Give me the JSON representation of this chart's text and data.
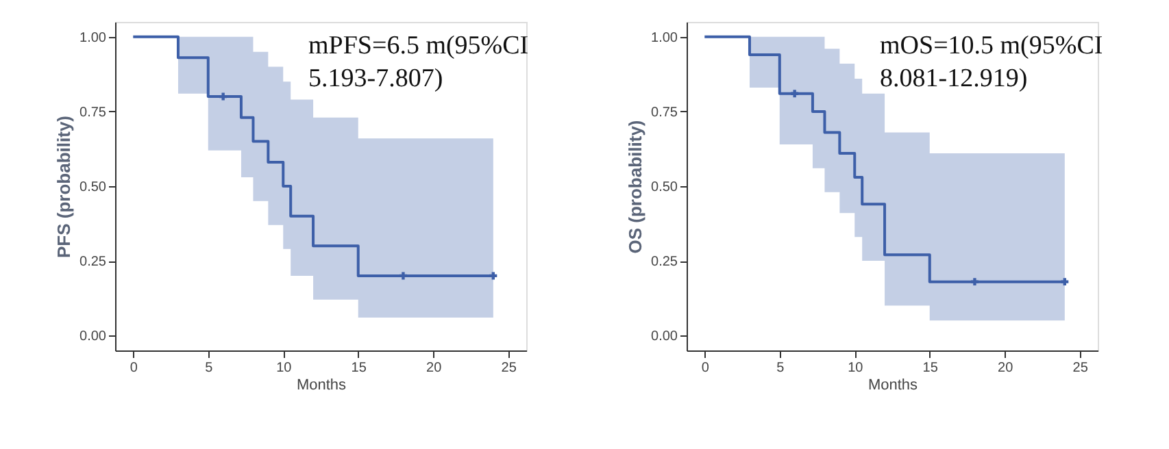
{
  "chart_data": [
    {
      "type": "step",
      "xlabel": "Months",
      "ylabel": "PFS (probability)",
      "annotations": [
        "mPFS=6.5 m(95%CI\n5.193-7.807)"
      ],
      "xlim": [
        -1.2,
        26.2
      ],
      "ylim": [
        -0.05,
        1.05
      ],
      "xticks": [
        0,
        5,
        10,
        15,
        20,
        25
      ],
      "yticks": [
        {
          "value": 0,
          "label": "0.00"
        },
        {
          "value": 0.25,
          "label": "0.25"
        },
        {
          "value": 0.5,
          "label": "0.50"
        },
        {
          "value": 0.75,
          "label": "0.75"
        },
        {
          "value": 1,
          "label": "1.00"
        }
      ],
      "grid": false,
      "line_style": "solid",
      "series": [
        {
          "color": "#3d5fa8",
          "x": [
            0,
            3,
            5,
            7.2,
            8,
            9,
            10,
            10.5,
            12,
            15,
            24
          ],
          "values": [
            1,
            0.93,
            0.8,
            0.73,
            0.65,
            0.58,
            0.5,
            0.4,
            0.3,
            0.2,
            0.2
          ],
          "lower": [
            1,
            0.81,
            0.62,
            0.53,
            0.45,
            0.37,
            0.29,
            0.2,
            0.12,
            0.06,
            0.06
          ],
          "upper": [
            1,
            1,
            1,
            1,
            0.95,
            0.9,
            0.85,
            0.79,
            0.73,
            0.66,
            0.66
          ]
        },
        {
          "type": "scatter",
          "marker": "cross",
          "color": "#3d5fa8",
          "x": [
            6,
            18,
            24
          ],
          "values": [
            0.8,
            0.2,
            0.2
          ]
        }
      ]
    },
    {
      "type": "step",
      "xlabel": "Months",
      "ylabel": "OS (probability)",
      "annotations": [
        "mOS=10.5 m(95%CI\n8.081-12.919)"
      ],
      "xlim": [
        -1.2,
        26.2
      ],
      "ylim": [
        -0.05,
        1.05
      ],
      "xticks": [
        0,
        5,
        10,
        15,
        20,
        25
      ],
      "yticks": [
        {
          "value": 0,
          "label": "0.00"
        },
        {
          "value": 0.25,
          "label": "0.25"
        },
        {
          "value": 0.5,
          "label": "0.50"
        },
        {
          "value": 0.75,
          "label": "0.75"
        },
        {
          "value": 1,
          "label": "1.00"
        }
      ],
      "grid": false,
      "line_style": "solid",
      "series": [
        {
          "color": "#3d5fa8",
          "x": [
            0,
            3,
            5,
            7.2,
            8,
            9,
            10,
            10.5,
            12,
            15,
            24
          ],
          "values": [
            1,
            0.94,
            0.81,
            0.75,
            0.68,
            0.61,
            0.53,
            0.44,
            0.27,
            0.18,
            0.18
          ],
          "lower": [
            1,
            0.83,
            0.64,
            0.56,
            0.48,
            0.41,
            0.33,
            0.25,
            0.1,
            0.05,
            0.05
          ],
          "upper": [
            1,
            1,
            1,
            1,
            0.96,
            0.91,
            0.86,
            0.81,
            0.68,
            0.61,
            0.61
          ]
        },
        {
          "type": "scatter",
          "marker": "cross",
          "color": "#3d5fa8",
          "x": [
            6,
            18,
            24
          ],
          "values": [
            0.81,
            0.18,
            0.18
          ]
        }
      ]
    }
  ]
}
